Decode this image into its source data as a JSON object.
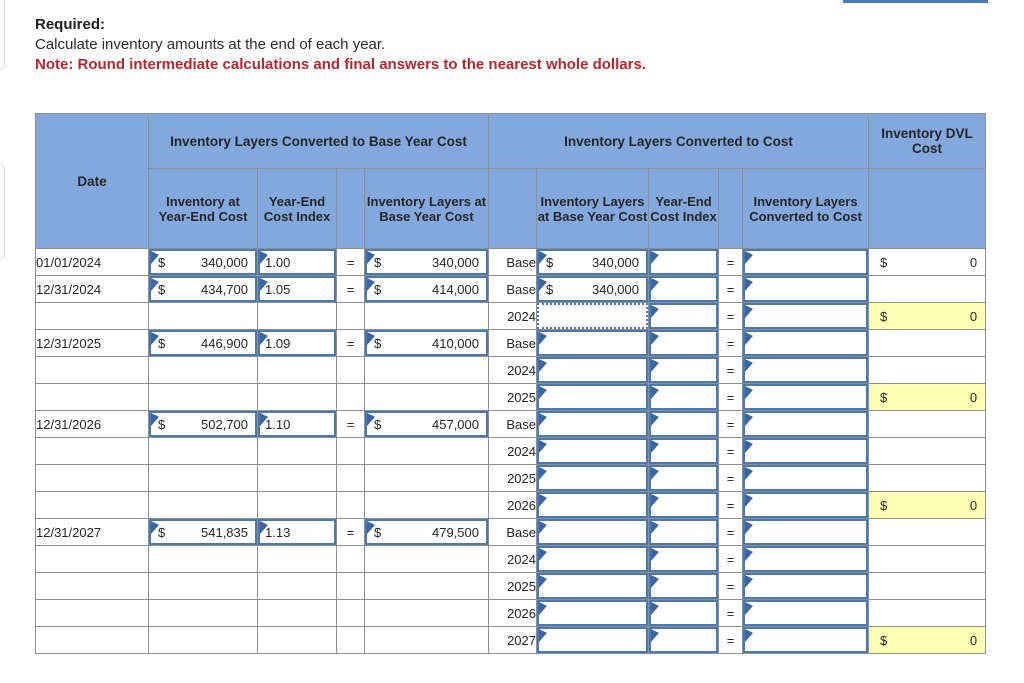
{
  "instructions": {
    "required_label": "Required:",
    "body": "Calculate inventory amounts at the end of each year.",
    "note": "Note: Round intermediate calculations and final answers to the nearest whole dollars."
  },
  "currency_symbol": "$",
  "equals_sign": "=",
  "colors": {
    "header_blue": "#82A8DD",
    "input_border_blue": "#4C78B0",
    "comment_flag_blue": "#3B66A0",
    "highlight_yellow": "#FFFFB4",
    "note_red": "#B3282D",
    "top_bar_blue": "#4C7CB8"
  },
  "table": {
    "group_headers": {
      "base_year": "Inventory Layers Converted to Base Year Cost",
      "to_cost": "Inventory Layers Converted to Cost",
      "dvl": "Inventory DVL Cost"
    },
    "column_headers": {
      "date": "Date",
      "inventory_at_year_end_cost": "Inventory at Year-End Cost",
      "year_end_cost_index": "Year-End Cost Index",
      "inventory_layers_at_base_year_cost": "Inventory Layers at Base Year Cost",
      "inventory_layers_at_base_year_cost_2": "Inventory Layers at Base Year Cost",
      "year_end_cost_index_2": "Year-End Cost Index",
      "inventory_layers_converted_to_cost": "Inventory Layers Converted to Cost"
    },
    "rows": [
      {
        "date": "01/01/2024",
        "inv_amount": "340,000",
        "index": "1.00",
        "base_amount": "340,000",
        "label": "Base",
        "layer_amount": "340,000",
        "layer_state": "filled",
        "dvl_state": "plain",
        "dvl_amount": "0"
      },
      {
        "date": "12/31/2024",
        "inv_amount": "434,700",
        "index": "1.05",
        "base_amount": "414,000",
        "label": "Base",
        "layer_amount": "340,000",
        "layer_state": "filled",
        "dvl_state": "empty",
        "dvl_amount": ""
      },
      {
        "date": "",
        "inv_amount": "",
        "index": "",
        "base_amount": "",
        "label": "2024",
        "layer_amount": "",
        "layer_state": "selected",
        "dvl_state": "yellow",
        "dvl_amount": "0"
      },
      {
        "date": "12/31/2025",
        "inv_amount": "446,900",
        "index": "1.09",
        "base_amount": "410,000",
        "label": "Base",
        "layer_amount": "",
        "layer_state": "input",
        "dvl_state": "empty",
        "dvl_amount": ""
      },
      {
        "date": "",
        "inv_amount": "",
        "index": "",
        "base_amount": "",
        "label": "2024",
        "layer_amount": "",
        "layer_state": "input",
        "dvl_state": "empty",
        "dvl_amount": ""
      },
      {
        "date": "",
        "inv_amount": "",
        "index": "",
        "base_amount": "",
        "label": "2025",
        "layer_amount": "",
        "layer_state": "input",
        "dvl_state": "yellow",
        "dvl_amount": "0"
      },
      {
        "date": "12/31/2026",
        "inv_amount": "502,700",
        "index": "1.10",
        "base_amount": "457,000",
        "label": "Base",
        "layer_amount": "",
        "layer_state": "input",
        "dvl_state": "empty",
        "dvl_amount": ""
      },
      {
        "date": "",
        "inv_amount": "",
        "index": "",
        "base_amount": "",
        "label": "2024",
        "layer_amount": "",
        "layer_state": "input",
        "dvl_state": "empty",
        "dvl_amount": ""
      },
      {
        "date": "",
        "inv_amount": "",
        "index": "",
        "base_amount": "",
        "label": "2025",
        "layer_amount": "",
        "layer_state": "input",
        "dvl_state": "empty",
        "dvl_amount": ""
      },
      {
        "date": "",
        "inv_amount": "",
        "index": "",
        "base_amount": "",
        "label": "2026",
        "layer_amount": "",
        "layer_state": "input",
        "dvl_state": "yellow",
        "dvl_amount": "0"
      },
      {
        "date": "12/31/2027",
        "inv_amount": "541,835",
        "index": "1.13",
        "base_amount": "479,500",
        "label": "Base",
        "layer_amount": "",
        "layer_state": "input",
        "dvl_state": "empty",
        "dvl_amount": ""
      },
      {
        "date": "",
        "inv_amount": "",
        "index": "",
        "base_amount": "",
        "label": "2024",
        "layer_amount": "",
        "layer_state": "input",
        "dvl_state": "empty",
        "dvl_amount": ""
      },
      {
        "date": "",
        "inv_amount": "",
        "index": "",
        "base_amount": "",
        "label": "2025",
        "layer_amount": "",
        "layer_state": "input",
        "dvl_state": "empty",
        "dvl_amount": ""
      },
      {
        "date": "",
        "inv_amount": "",
        "index": "",
        "base_amount": "",
        "label": "2026",
        "layer_amount": "",
        "layer_state": "input",
        "dvl_state": "empty",
        "dvl_amount": ""
      },
      {
        "date": "",
        "inv_amount": "",
        "index": "",
        "base_amount": "",
        "label": "2027",
        "layer_amount": "",
        "layer_state": "input",
        "dvl_state": "yellow",
        "dvl_amount": "0"
      }
    ]
  }
}
